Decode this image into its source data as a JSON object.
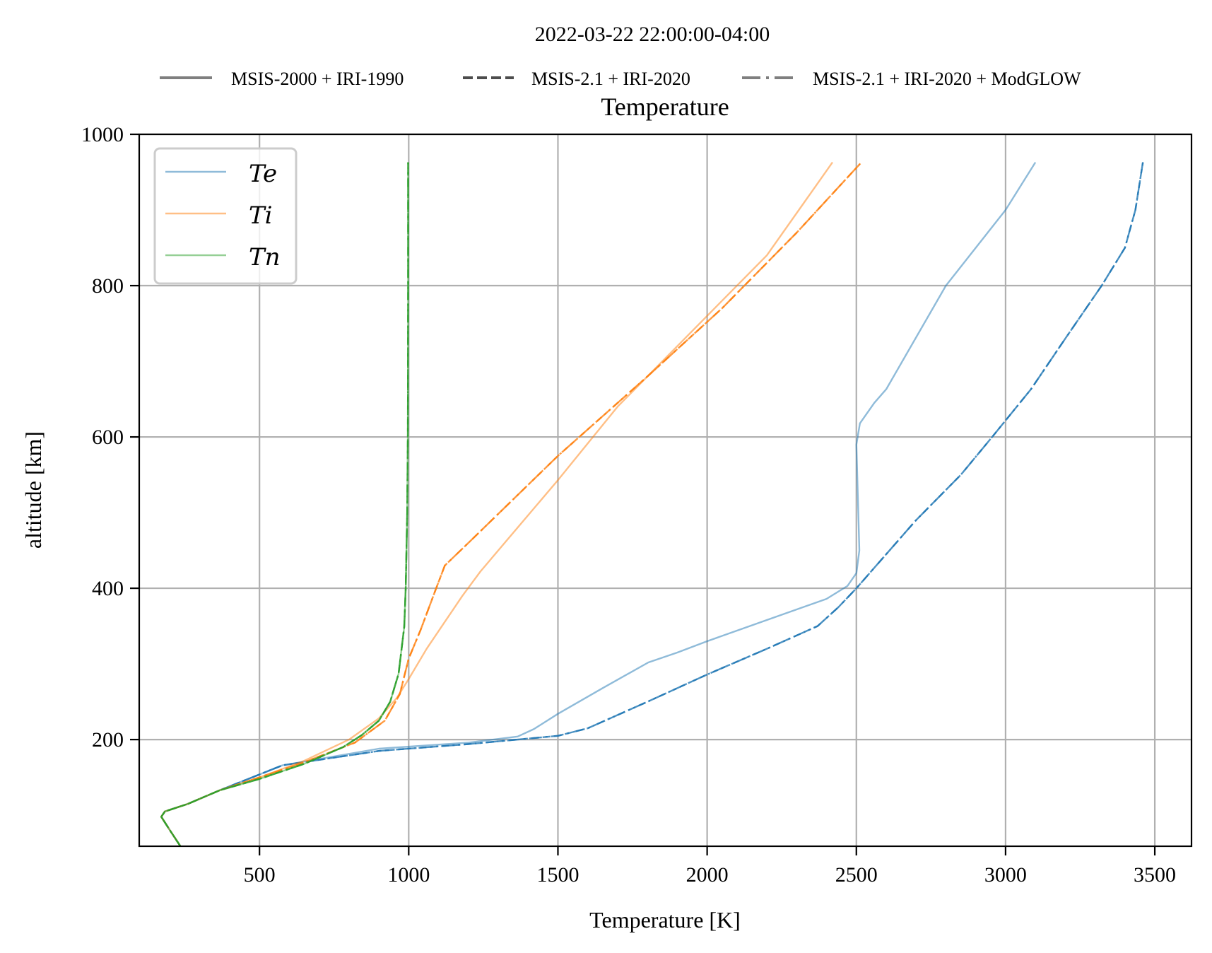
{
  "figure": {
    "suptitle": "2022-03-22 22:00:00-04:00",
    "axes_title": "Temperature",
    "xlabel": "Temperature [K]",
    "ylabel": "altitude [km]"
  },
  "model_legend": {
    "items": [
      {
        "label": "MSIS-2000 + IRI-1990",
        "style": "solid"
      },
      {
        "label": "MSIS-2.1 + IRI-2020",
        "style": "dashed"
      },
      {
        "label": "MSIS-2.1 + IRI-2020 + ModGLOW",
        "style": "dashdot"
      }
    ],
    "color": "#7f7f7f"
  },
  "species_legend": {
    "items": [
      {
        "label": "Te",
        "color": "#1f77b4"
      },
      {
        "label": "Ti",
        "color": "#ff7f0e"
      },
      {
        "label": "Tn",
        "color": "#2ca02c"
      }
    ],
    "position": "upper left"
  },
  "colors": {
    "Te": "#1f77b4",
    "Ti": "#ff7f0e",
    "Tn": "#2ca02c",
    "grid": "#b0b0b0",
    "legend_frame": "#cccccc"
  },
  "chart_data": {
    "type": "line",
    "title": "Temperature",
    "suptitle": "2022-03-22 22:00:00-04:00",
    "xlabel": "Temperature [K]",
    "ylabel": "altitude [km]",
    "xlim": [
      97,
      3623
    ],
    "ylim": [
      59,
      1000
    ],
    "xticks": [
      500,
      1000,
      1500,
      2000,
      2500,
      3000,
      3500
    ],
    "yticks": [
      200,
      400,
      600,
      800,
      1000
    ],
    "grid": true,
    "legend_position": "upper left (species); above axes (models)",
    "series": [
      {
        "name": "Te",
        "model": "MSIS-2000 + IRI-1990",
        "style": "solid",
        "alpha": 0.5,
        "points": [
          [
            235,
            59
          ],
          [
            200,
            80
          ],
          [
            171,
            98
          ],
          [
            183,
            105
          ],
          [
            260,
            115
          ],
          [
            367,
            133
          ],
          [
            577,
            166
          ],
          [
            900,
            188
          ],
          [
            1200,
            196
          ],
          [
            1365,
            204
          ],
          [
            1420,
            214
          ],
          [
            1500,
            234
          ],
          [
            1650,
            268
          ],
          [
            1803,
            302
          ],
          [
            1900,
            315
          ],
          [
            2000,
            330
          ],
          [
            2200,
            358
          ],
          [
            2400,
            386
          ],
          [
            2470,
            403
          ],
          [
            2500,
            420
          ],
          [
            2510,
            450
          ],
          [
            2505,
            520
          ],
          [
            2500,
            590
          ],
          [
            2512,
            618
          ],
          [
            2560,
            645
          ],
          [
            2600,
            663
          ],
          [
            2800,
            800
          ],
          [
            3000,
            900
          ],
          [
            3100,
            963
          ]
        ]
      },
      {
        "name": "Te",
        "model": "MSIS-2.1 + IRI-2020",
        "style": "dashed",
        "alpha": 0.8,
        "points": [
          [
            235,
            59
          ],
          [
            200,
            80
          ],
          [
            171,
            98
          ],
          [
            183,
            105
          ],
          [
            260,
            115
          ],
          [
            367,
            133
          ],
          [
            577,
            166
          ],
          [
            900,
            185
          ],
          [
            1200,
            194
          ],
          [
            1500,
            205
          ],
          [
            1600,
            215
          ],
          [
            1800,
            250
          ],
          [
            2000,
            286
          ],
          [
            2200,
            320
          ],
          [
            2370,
            350
          ],
          [
            2440,
            375
          ],
          [
            2500,
            400
          ],
          [
            2600,
            445
          ],
          [
            2700,
            490
          ],
          [
            2850,
            550
          ],
          [
            2955,
            600
          ],
          [
            3085,
            663
          ],
          [
            3200,
            730
          ],
          [
            3322,
            800
          ],
          [
            3400,
            850
          ],
          [
            3435,
            900
          ],
          [
            3460,
            963
          ]
        ]
      },
      {
        "name": "Te",
        "model": "MSIS-2.1 + IRI-2020 + ModGLOW",
        "style": "dashdot",
        "alpha": 0.8,
        "points": [
          [
            235,
            59
          ],
          [
            200,
            80
          ],
          [
            171,
            98
          ],
          [
            183,
            105
          ],
          [
            260,
            115
          ],
          [
            367,
            133
          ],
          [
            577,
            166
          ],
          [
            900,
            185
          ],
          [
            1200,
            194
          ],
          [
            1500,
            205
          ],
          [
            1600,
            215
          ],
          [
            1800,
            250
          ],
          [
            2000,
            286
          ],
          [
            2200,
            320
          ],
          [
            2370,
            350
          ],
          [
            2440,
            375
          ],
          [
            2500,
            400
          ],
          [
            2600,
            445
          ],
          [
            2700,
            490
          ],
          [
            2850,
            550
          ],
          [
            2955,
            600
          ],
          [
            3085,
            663
          ],
          [
            3200,
            730
          ],
          [
            3322,
            800
          ],
          [
            3400,
            850
          ],
          [
            3435,
            900
          ],
          [
            3460,
            963
          ]
        ]
      },
      {
        "name": "Ti",
        "model": "MSIS-2000 + IRI-1990",
        "style": "solid",
        "alpha": 0.5,
        "points": [
          [
            235,
            59
          ],
          [
            200,
            80
          ],
          [
            171,
            98
          ],
          [
            183,
            105
          ],
          [
            260,
            115
          ],
          [
            367,
            133
          ],
          [
            500,
            150
          ],
          [
            650,
            172
          ],
          [
            800,
            200
          ],
          [
            900,
            228
          ],
          [
            960,
            255
          ],
          [
            1000,
            280
          ],
          [
            1060,
            320
          ],
          [
            1120,
            355
          ],
          [
            1180,
            390
          ],
          [
            1240,
            422
          ],
          [
            1300,
            450
          ],
          [
            1500,
            543
          ],
          [
            1700,
            640
          ],
          [
            2000,
            760
          ],
          [
            2200,
            840
          ],
          [
            2420,
            963
          ]
        ]
      },
      {
        "name": "Ti",
        "model": "MSIS-2.1 + IRI-2020",
        "style": "dashed",
        "alpha": 0.8,
        "points": [
          [
            235,
            59
          ],
          [
            200,
            80
          ],
          [
            171,
            98
          ],
          [
            183,
            105
          ],
          [
            260,
            115
          ],
          [
            367,
            133
          ],
          [
            500,
            150
          ],
          [
            650,
            170
          ],
          [
            820,
            196
          ],
          [
            920,
            225
          ],
          [
            970,
            260
          ],
          [
            1000,
            307
          ],
          [
            1040,
            345
          ],
          [
            1092,
            400
          ],
          [
            1121,
            430
          ],
          [
            1200,
            460
          ],
          [
            1500,
            575
          ],
          [
            1800,
            680
          ],
          [
            2050,
            770
          ],
          [
            2300,
            870
          ],
          [
            2517,
            963
          ]
        ]
      },
      {
        "name": "Ti",
        "model": "MSIS-2.1 + IRI-2020 + ModGLOW",
        "style": "dashdot",
        "alpha": 0.8,
        "points": [
          [
            235,
            59
          ],
          [
            200,
            80
          ],
          [
            171,
            98
          ],
          [
            183,
            105
          ],
          [
            260,
            115
          ],
          [
            367,
            133
          ],
          [
            500,
            150
          ],
          [
            650,
            170
          ],
          [
            820,
            196
          ],
          [
            920,
            225
          ],
          [
            970,
            260
          ],
          [
            1000,
            307
          ],
          [
            1040,
            345
          ],
          [
            1092,
            400
          ],
          [
            1121,
            430
          ],
          [
            1200,
            460
          ],
          [
            1500,
            575
          ],
          [
            1800,
            680
          ],
          [
            2050,
            770
          ],
          [
            2300,
            870
          ],
          [
            2517,
            963
          ]
        ]
      },
      {
        "name": "Tn",
        "model": "MSIS-2000 + IRI-1990",
        "style": "solid",
        "alpha": 0.5,
        "points": [
          [
            235,
            59
          ],
          [
            200,
            80
          ],
          [
            171,
            98
          ],
          [
            183,
            105
          ],
          [
            260,
            115
          ],
          [
            367,
            133
          ],
          [
            500,
            148
          ],
          [
            650,
            168
          ],
          [
            780,
            190
          ],
          [
            843,
            206
          ],
          [
            900,
            225
          ],
          [
            938,
            250
          ],
          [
            966,
            287
          ],
          [
            985,
            349
          ],
          [
            990,
            400
          ],
          [
            995,
            500
          ],
          [
            997,
            600
          ],
          [
            998,
            800
          ],
          [
            998,
            963
          ]
        ]
      },
      {
        "name": "Tn",
        "model": "MSIS-2.1 + IRI-2020",
        "style": "dashed",
        "alpha": 0.8,
        "points": [
          [
            235,
            59
          ],
          [
            200,
            80
          ],
          [
            171,
            98
          ],
          [
            183,
            105
          ],
          [
            260,
            115
          ],
          [
            367,
            133
          ],
          [
            500,
            148
          ],
          [
            650,
            168
          ],
          [
            780,
            190
          ],
          [
            843,
            206
          ],
          [
            900,
            225
          ],
          [
            938,
            250
          ],
          [
            966,
            287
          ],
          [
            985,
            349
          ],
          [
            990,
            400
          ],
          [
            995,
            500
          ],
          [
            997,
            600
          ],
          [
            998,
            800
          ],
          [
            998,
            963
          ]
        ]
      },
      {
        "name": "Tn",
        "model": "MSIS-2.1 + IRI-2020 + ModGLOW",
        "style": "dashdot",
        "alpha": 0.8,
        "points": [
          [
            235,
            59
          ],
          [
            200,
            80
          ],
          [
            171,
            98
          ],
          [
            183,
            105
          ],
          [
            260,
            115
          ],
          [
            367,
            133
          ],
          [
            500,
            148
          ],
          [
            650,
            168
          ],
          [
            780,
            190
          ],
          [
            843,
            206
          ],
          [
            900,
            225
          ],
          [
            938,
            250
          ],
          [
            966,
            287
          ],
          [
            985,
            349
          ],
          [
            990,
            400
          ],
          [
            995,
            500
          ],
          [
            997,
            600
          ],
          [
            998,
            800
          ],
          [
            998,
            963
          ]
        ]
      }
    ]
  }
}
